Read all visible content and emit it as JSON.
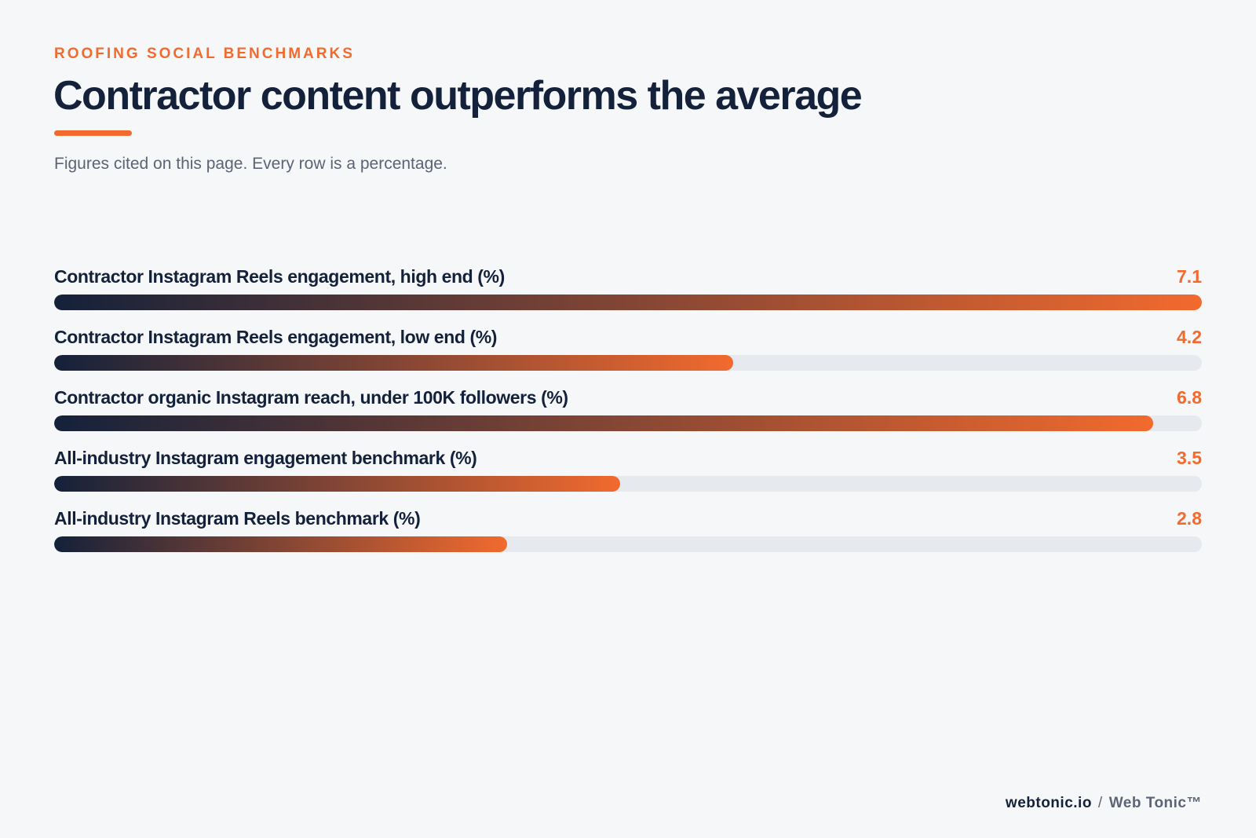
{
  "header": {
    "eyebrow": "ROOFING SOCIAL BENCHMARKS",
    "title": "Contractor content outperforms the average",
    "subtitle": "Figures cited on this page. Every row is a percentage."
  },
  "colors": {
    "accent": "#f26a2e",
    "navy": "#14213a",
    "track": "#e6e9ee",
    "muted": "#5b6474"
  },
  "chart_data": {
    "type": "bar",
    "orientation": "horizontal",
    "xlim": [
      0,
      7.1
    ],
    "categories": [
      "Contractor Instagram Reels engagement, high end (%)",
      "Contractor Instagram Reels engagement, low end (%)",
      "Contractor organic Instagram reach, under 100K followers (%)",
      "All-industry Instagram engagement benchmark (%)",
      "All-industry Instagram Reels benchmark (%)"
    ],
    "values": [
      7.1,
      4.2,
      6.8,
      3.5,
      2.8
    ],
    "value_labels": [
      "7.1",
      "4.2",
      "6.8",
      "3.5",
      "2.8"
    ]
  },
  "footer": {
    "domain": "webtonic.io",
    "separator": "/",
    "brand": "Web Tonic™"
  }
}
